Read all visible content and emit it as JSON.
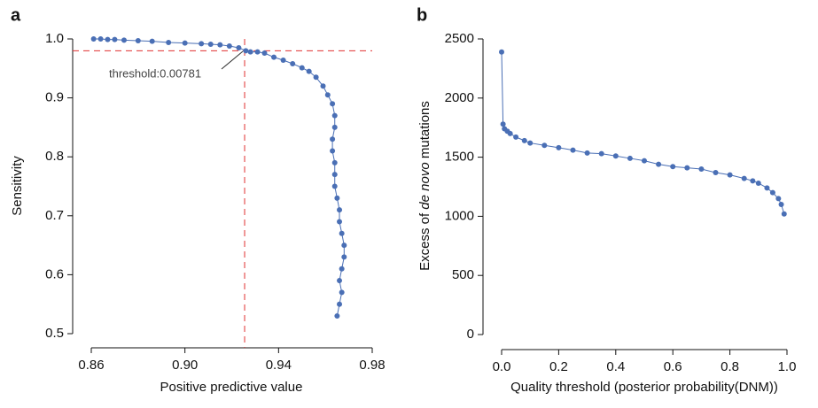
{
  "chart_data": [
    {
      "type": "line",
      "panel_label": "a",
      "x_label": "Positive predictive value",
      "y_label": "Sensitivity",
      "xlim": [
        0.86,
        0.98
      ],
      "ylim": [
        0.5,
        1.0
      ],
      "xticks": [
        0.86,
        {
          "value": 0.9,
          "label": "0.90"
        },
        0.94,
        0.98
      ],
      "yticks": [
        0.5,
        0.6,
        0.7,
        0.8,
        0.9,
        {
          "value": 1.0,
          "label": "1.0"
        }
      ],
      "x": [
        0.861,
        0.864,
        0.867,
        0.87,
        0.874,
        0.88,
        0.886,
        0.893,
        0.9,
        0.907,
        0.911,
        0.915,
        0.919,
        0.923,
        0.926,
        0.928,
        0.931,
        0.934,
        0.938,
        0.942,
        0.946,
        0.95,
        0.953,
        0.956,
        0.959,
        0.961,
        0.963,
        0.964,
        0.964,
        0.963,
        0.963,
        0.964,
        0.964,
        0.964,
        0.965,
        0.966,
        0.966,
        0.967,
        0.968,
        0.968,
        0.967,
        0.966,
        0.967,
        0.966,
        0.965
      ],
      "series": [
        {
          "color": "#4a6fb5",
          "values": [
            1.0,
            1.0,
            0.999,
            0.999,
            0.998,
            0.997,
            0.996,
            0.994,
            0.993,
            0.992,
            0.991,
            0.99,
            0.988,
            0.985,
            0.98,
            0.978,
            0.978,
            0.976,
            0.969,
            0.964,
            0.958,
            0.951,
            0.945,
            0.935,
            0.92,
            0.905,
            0.89,
            0.87,
            0.85,
            0.83,
            0.81,
            0.79,
            0.77,
            0.75,
            0.73,
            0.71,
            0.69,
            0.67,
            0.65,
            0.63,
            0.61,
            0.59,
            0.57,
            0.55,
            0.53
          ]
        }
      ],
      "reference_lines": {
        "x": 0.9255,
        "y": 0.98,
        "color": "#e03030",
        "dashed": true
      },
      "annotation": "threshold:0.00781"
    },
    {
      "type": "line",
      "panel_label": "b",
      "x_label": "Quality threshold (posterior probability(DNM))",
      "y_label_parts": [
        "Excess of ",
        "de novo",
        " mutations"
      ],
      "xlim": [
        0,
        1
      ],
      "ylim": [
        0,
        2500
      ],
      "xticks": [
        {
          "value": 0,
          "label": "0.0"
        },
        0.2,
        0.4,
        0.6,
        0.8,
        {
          "value": 1,
          "label": "1.0"
        }
      ],
      "yticks": [
        0,
        500,
        1000,
        1500,
        2000,
        2500
      ],
      "x": [
        0,
        0.005,
        0.01,
        0.02,
        0.03,
        0.05,
        0.08,
        0.1,
        0.15,
        0.2,
        0.25,
        0.3,
        0.35,
        0.4,
        0.45,
        0.5,
        0.55,
        0.6,
        0.65,
        0.7,
        0.75,
        0.8,
        0.85,
        0.88,
        0.9,
        0.93,
        0.95,
        0.97,
        0.98,
        0.99
      ],
      "series": [
        {
          "color": "#4a6fb5",
          "values": [
            2390,
            1780,
            1740,
            1720,
            1700,
            1670,
            1640,
            1620,
            1600,
            1580,
            1560,
            1535,
            1530,
            1510,
            1490,
            1470,
            1440,
            1420,
            1410,
            1400,
            1370,
            1350,
            1320,
            1300,
            1280,
            1240,
            1200,
            1150,
            1100,
            1020
          ]
        }
      ]
    }
  ]
}
